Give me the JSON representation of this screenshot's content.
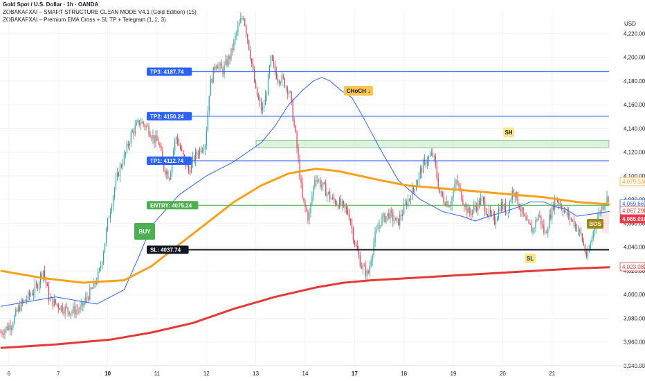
{
  "header": {
    "title": "Gold Spot / U.S. Dollar · 1h · OANDA",
    "indicator1": "ZOBAKAFXAI – SMART STRUCTURE CLEAN MODE V4.1 (Gold Edition) (15)",
    "indicator2": "ZOBAKAFXAI – Premium EMA Cross + SL TP + Telegram (1, 2, 3)",
    "currency": "USD"
  },
  "colors": {
    "up": "#26a69a",
    "down": "#f23645",
    "ema_fast": "#2962ff",
    "ema_mid": "#f7a21b",
    "ema_slow": "#e53935",
    "tp": "#2962ff",
    "entry": "#4caf50",
    "sl": "#131722"
  },
  "chart_data": {
    "type": "candlestick",
    "y_axis": {
      "min": 3940,
      "max": 4240,
      "ticks": [
        "4,220.000",
        "4,200.000",
        "4,180.000",
        "4,160.000",
        "4,140.000",
        "4,120.000",
        "4,100.000",
        "4,080.000",
        "4,060.000",
        "4,040.000",
        "4,020.000",
        "4,000.000",
        "3,980.000",
        "3,960.000",
        "3,940.000"
      ],
      "tick_values": [
        4220,
        4200,
        4180,
        4160,
        4140,
        4120,
        4100,
        4080,
        4060,
        4040,
        4020,
        4000,
        3980,
        3960,
        3940
      ]
    },
    "x_axis": {
      "labels": [
        "6",
        "7",
        "10",
        "11",
        "12",
        "13",
        "14",
        "17",
        "18",
        "19",
        "20",
        "21"
      ],
      "label_index": [
        6,
        42,
        78,
        114,
        150,
        186,
        222,
        258,
        294,
        330,
        366,
        402
      ],
      "bold": [
        false,
        false,
        true,
        false,
        false,
        false,
        false,
        true,
        false,
        false,
        false,
        false
      ]
    },
    "candle_count": 444,
    "anchors": [
      [
        0,
        3968
      ],
      [
        10,
        3975
      ],
      [
        18,
        3990
      ],
      [
        26,
        3998
      ],
      [
        34,
        4006
      ],
      [
        40,
        4022
      ],
      [
        46,
        3996
      ],
      [
        56,
        3990
      ],
      [
        66,
        3986
      ],
      [
        76,
        3988
      ],
      [
        82,
        3998
      ],
      [
        88,
        4006
      ],
      [
        94,
        4020
      ],
      [
        98,
        4040
      ],
      [
        102,
        4064
      ],
      [
        108,
        4090
      ],
      [
        112,
        4104
      ],
      [
        118,
        4118
      ],
      [
        124,
        4136
      ],
      [
        132,
        4146
      ],
      [
        140,
        4140
      ],
      [
        146,
        4130
      ],
      [
        150,
        4128
      ],
      [
        154,
        4108
      ],
      [
        160,
        4100
      ],
      [
        166,
        4134
      ],
      [
        172,
        4118
      ],
      [
        178,
        4104
      ],
      [
        184,
        4116
      ],
      [
        190,
        4124
      ],
      [
        194,
        4128
      ],
      [
        198,
        4175
      ],
      [
        204,
        4196
      ],
      [
        210,
        4188
      ],
      [
        218,
        4202
      ],
      [
        224,
        4222
      ],
      [
        230,
        4236
      ],
      [
        236,
        4206
      ],
      [
        242,
        4170
      ],
      [
        248,
        4154
      ],
      [
        252,
        4170
      ],
      [
        256,
        4198
      ],
      [
        262,
        4184
      ],
      [
        268,
        4180
      ],
      [
        274,
        4170
      ],
      [
        280,
        4130
      ],
      [
        286,
        4080
      ],
      [
        292,
        4064
      ],
      [
        298,
        4100
      ],
      [
        306,
        4090
      ],
      [
        314,
        4080
      ],
      [
        322,
        4076
      ],
      [
        330,
        4068
      ],
      [
        336,
        4042
      ],
      [
        342,
        4024
      ],
      [
        348,
        4016
      ],
      [
        354,
        4046
      ],
      [
        360,
        4062
      ],
      [
        368,
        4068
      ],
      [
        376,
        4060
      ],
      [
        384,
        4076
      ],
      [
        392,
        4090
      ],
      [
        398,
        4104
      ],
      [
        404,
        4114
      ],
      [
        410,
        4118
      ],
      [
        416,
        4086
      ],
      [
        420,
        4080
      ],
      [
        426,
        4076
      ],
      [
        432,
        4096
      ],
      [
        438,
        4080
      ],
      [
        444,
        4068
      ],
      [
        450,
        4074
      ],
      [
        456,
        4080
      ],
      [
        462,
        4068
      ],
      [
        468,
        4062
      ],
      [
        474,
        4076
      ],
      [
        480,
        4070
      ],
      [
        486,
        4090
      ],
      [
        492,
        4074
      ],
      [
        498,
        4060
      ],
      [
        504,
        4054
      ],
      [
        510,
        4068
      ],
      [
        516,
        4050
      ],
      [
        520,
        4064
      ],
      [
        526,
        4082
      ],
      [
        532,
        4074
      ],
      [
        538,
        4066
      ],
      [
        544,
        4060
      ],
      [
        550,
        4050
      ],
      [
        556,
        4030
      ],
      [
        560,
        4046
      ],
      [
        564,
        4062
      ],
      [
        568,
        4070
      ],
      [
        572,
        4078
      ],
      [
        576,
        4082
      ]
    ],
    "candles": [],
    "series": [
      {
        "name": "EMA fast",
        "color": "#2962ff",
        "values": [
          [
            0,
            3990
          ],
          [
            40,
            3998
          ],
          [
            70,
            3992
          ],
          [
            90,
            4004
          ],
          [
            100,
            4030
          ],
          [
            110,
            4058
          ],
          [
            130,
            4084
          ],
          [
            150,
            4100
          ],
          [
            170,
            4112
          ],
          [
            190,
            4128
          ],
          [
            200,
            4142
          ],
          [
            210,
            4160
          ],
          [
            220,
            4172
          ],
          [
            228,
            4180
          ],
          [
            234,
            4183
          ],
          [
            240,
            4180
          ],
          [
            248,
            4172
          ],
          [
            256,
            4166
          ],
          [
            264,
            4150
          ],
          [
            276,
            4124
          ],
          [
            290,
            4096
          ],
          [
            306,
            4080
          ],
          [
            322,
            4070
          ],
          [
            336,
            4066
          ],
          [
            346,
            4062
          ],
          [
            356,
            4066
          ],
          [
            368,
            4070
          ],
          [
            378,
            4074
          ],
          [
            386,
            4078
          ],
          [
            396,
            4078
          ],
          [
            404,
            4074
          ],
          [
            412,
            4072
          ],
          [
            420,
            4066
          ],
          [
            432,
            4068
          ],
          [
            444,
            4070
          ]
        ]
      },
      {
        "name": "EMA mid",
        "color": "#f7a21b",
        "values": [
          [
            0,
            4020
          ],
          [
            30,
            4014
          ],
          [
            60,
            4010
          ],
          [
            90,
            4012
          ],
          [
            110,
            4024
          ],
          [
            130,
            4042
          ],
          [
            150,
            4060
          ],
          [
            170,
            4078
          ],
          [
            190,
            4092
          ],
          [
            210,
            4102
          ],
          [
            230,
            4106
          ],
          [
            246,
            4104
          ],
          [
            262,
            4100
          ],
          [
            278,
            4096
          ],
          [
            296,
            4092
          ],
          [
            316,
            4090
          ],
          [
            336,
            4088
          ],
          [
            356,
            4086
          ],
          [
            376,
            4084
          ],
          [
            396,
            4082
          ],
          [
            420,
            4078
          ],
          [
            444,
            4076
          ]
        ]
      },
      {
        "name": "EMA slow",
        "color": "#e53935",
        "values": [
          [
            0,
            3955
          ],
          [
            40,
            3958
          ],
          [
            80,
            3962
          ],
          [
            110,
            3968
          ],
          [
            140,
            3976
          ],
          [
            170,
            3988
          ],
          [
            200,
            3998
          ],
          [
            230,
            4006
          ],
          [
            250,
            4010
          ],
          [
            270,
            4012
          ],
          [
            300,
            4014
          ],
          [
            330,
            4016
          ],
          [
            360,
            4018
          ],
          [
            390,
            4020
          ],
          [
            420,
            4022
          ],
          [
            444,
            4023
          ]
        ]
      }
    ],
    "levels": [
      {
        "name": "TP3",
        "label": "TP3: 4187.74",
        "value": 4187.74,
        "color": "#2962ff"
      },
      {
        "name": "TP2",
        "label": "TP2: 4150.24",
        "value": 4150.24,
        "color": "#2962ff"
      },
      {
        "name": "TP1",
        "label": "TP1: 4112.74",
        "value": 4112.74,
        "color": "#2962ff"
      },
      {
        "name": "ENTRY",
        "label": "ENTRY: 4075.24",
        "value": 4075.24,
        "color": "#4caf50"
      },
      {
        "name": "SL",
        "label": "SL: 4037.74",
        "value": 4037.74,
        "color": "#131722"
      }
    ],
    "annotations": [
      {
        "name": "buy",
        "text": "BUY"
      },
      {
        "name": "choch",
        "text": "CHoCH ↓"
      },
      {
        "name": "sh",
        "text": "SH"
      },
      {
        "name": "sl",
        "text": "SL"
      },
      {
        "name": "bos",
        "text": "BOS"
      }
    ],
    "price_labels": [
      {
        "text": "4,079.534",
        "value": 4079.534,
        "color": "#f7a21b",
        "filled": false
      },
      {
        "text": "4,069.667",
        "value": 4069.667,
        "color": "#2962ff",
        "filled": false
      },
      {
        "text": "4,067.290",
        "value": 4067.29,
        "color": "#e53935",
        "filled": false
      },
      {
        "text": "4,065.010",
        "value": 4065.01,
        "color": "#f23645",
        "filled": true
      },
      {
        "text": "4,023.082",
        "value": 4023.082,
        "color": "#e53935",
        "filled": false
      }
    ]
  }
}
